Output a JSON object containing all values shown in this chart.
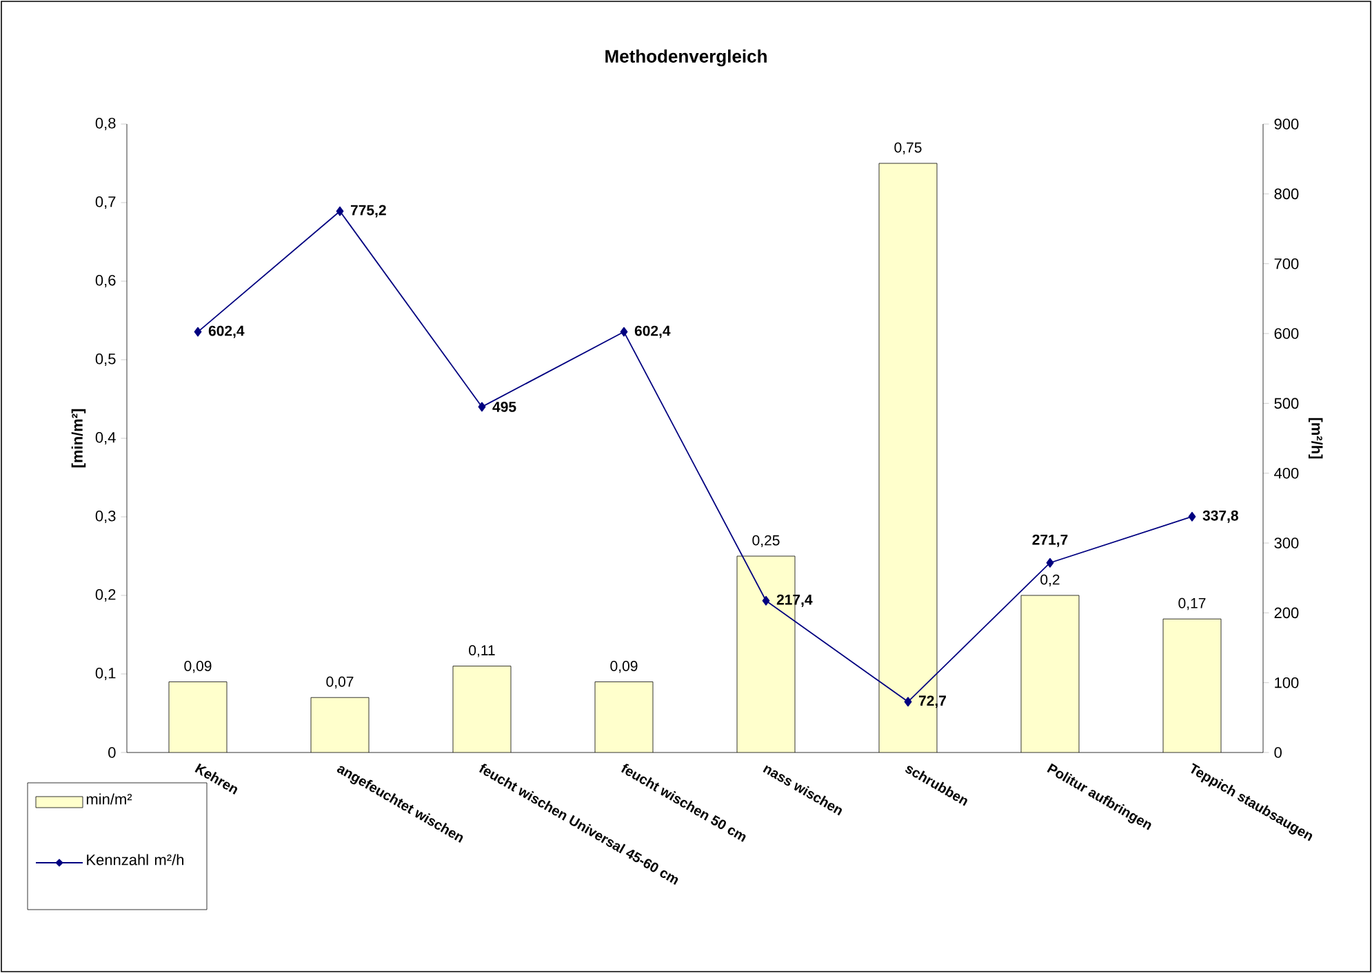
{
  "chart_data": {
    "type": "bar",
    "title": "Methodenvergleich",
    "ylabel": "[min/m²]",
    "y2label": "[m²/h]",
    "categories": [
      "Kehren",
      "angefeuchtet wischen",
      "feucht wischen Universal 45-60 cm",
      "feucht wischen 50 cm",
      "nass wischen",
      "schrubben",
      "Politur aufbringen",
      "Teppich staubsaugen"
    ],
    "series": [
      {
        "name": "min/m²",
        "type": "bar",
        "color": "#ffffcc",
        "values": [
          0.09,
          0.07,
          0.11,
          0.09,
          0.25,
          0.75,
          0.2,
          0.17
        ],
        "value_labels": [
          "0,09",
          "0,07",
          "0,11",
          "0,09",
          "0,25",
          "0,75",
          "0,2",
          "0,17"
        ]
      },
      {
        "name": "Kennzahl m²/h",
        "type": "line",
        "axis": "y2",
        "color": "#000080",
        "values": [
          602.4,
          775.2,
          495,
          602.4,
          217.4,
          72.7,
          271.7,
          337.8
        ],
        "value_labels": [
          "602,4",
          "775,2",
          "495",
          "602,4",
          "217,4",
          "72,7",
          "271,7",
          "337,8"
        ]
      }
    ],
    "ylim": [
      0,
      0.8
    ],
    "yticks": [
      0,
      {
        "value": 0.1,
        "label": "0,1"
      },
      {
        "value": 0.2,
        "label": "0,2"
      },
      {
        "value": 0.3,
        "label": "0,3"
      },
      {
        "value": 0.4,
        "label": "0,4"
      },
      {
        "value": 0.5,
        "label": "0,5"
      },
      {
        "value": 0.6,
        "label": "0,6"
      },
      {
        "value": 0.7,
        "label": "0,7"
      },
      {
        "value": 0.8,
        "label": "0,8"
      }
    ],
    "y2lim": [
      0,
      900
    ],
    "y2ticks": [
      0,
      100,
      200,
      300,
      400,
      500,
      600,
      700,
      800,
      900
    ],
    "legend": "bottom left",
    "marker": "diamond",
    "grid": false
  }
}
